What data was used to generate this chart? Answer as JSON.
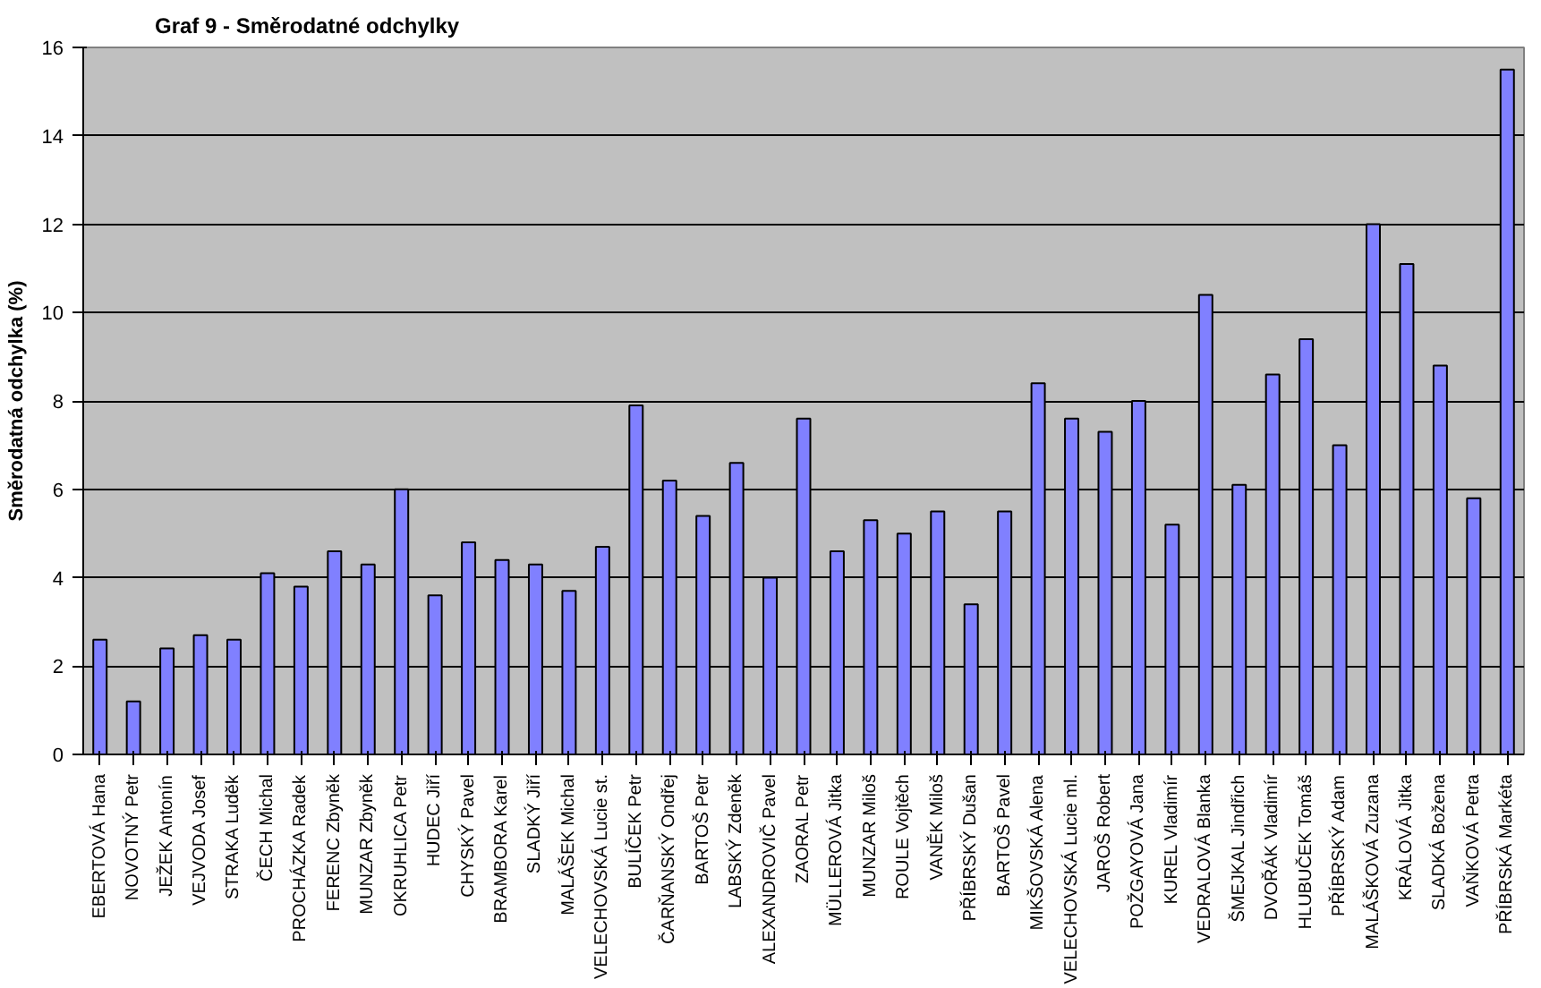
{
  "chart_data": {
    "type": "bar",
    "title": "Graf 9 - Směrodatné odchylky",
    "ylabel": "Směrodatná odchylka (%)",
    "categories": [
      "EBERTOVÁ Hana",
      "NOVOTNÝ Petr",
      "JEŽEK Antonín",
      "VEJVODA Josef",
      "STRAKA Luděk",
      "ČECH Michal",
      "PROCHÁZKA Radek",
      "FERENC Zbyněk",
      "MUNZAR Zbyněk",
      "OKRUHLICA Petr",
      "HUDEC Jiří",
      "CHYSKÝ Pavel",
      "BRAMBORA Karel",
      "SLADKÝ Jiří",
      "MALÁŠEK Michal",
      "VELECHOVSKÁ Lucie st.",
      "BULÍČEK Petr",
      "ČARŇANSKÝ Ondřej",
      "BARTOŠ Petr",
      "LABSKÝ Zdeněk",
      "ALEXANDROVIČ Pavel",
      "ZAORAL Petr",
      "MÜLLEROVÁ Jitka",
      "MUNZAR Miloš",
      "ROULE Vojtěch",
      "VANĚK Miloš",
      "PŘÍBRSKÝ Dušan",
      "BARTOŠ Pavel",
      "MIKŠOVSKÁ Alena",
      "VELECHOVSKÁ Lucie ml.",
      "JAROŠ Robert",
      "POŽGAYOVÁ Jana",
      "KUREL Vladimír",
      "VEDRALOVÁ Blanka",
      "ŠMEJKAL Jindřich",
      "DVOŘÁK Vladimír",
      "HLUBUČEK Tomáš",
      "PŘÍBRSKÝ Adam",
      "MALÁŠKOVÁ Zuzana",
      "KRÁLOVÁ Jitka",
      "SLADKÁ Božena",
      "VAŇKOVÁ Petra",
      "PŘÍBRSKÁ Markéta"
    ],
    "values": [
      2.6,
      1.2,
      2.4,
      2.7,
      2.6,
      4.1,
      3.8,
      4.6,
      4.3,
      6.0,
      3.6,
      4.8,
      4.4,
      4.3,
      3.7,
      4.7,
      7.9,
      6.2,
      5.4,
      6.6,
      4.0,
      7.6,
      4.6,
      5.3,
      5.0,
      5.5,
      3.4,
      5.5,
      8.4,
      7.6,
      7.3,
      8.0,
      5.2,
      10.4,
      6.1,
      8.6,
      9.4,
      7.0,
      12.0,
      11.1,
      8.8,
      5.8,
      15.5
    ],
    "color": "#8080ff",
    "ylim": [
      0,
      16
    ],
    "yticks": [
      0,
      2,
      4,
      6,
      8,
      10,
      12,
      14,
      16
    ],
    "grid": "y"
  }
}
